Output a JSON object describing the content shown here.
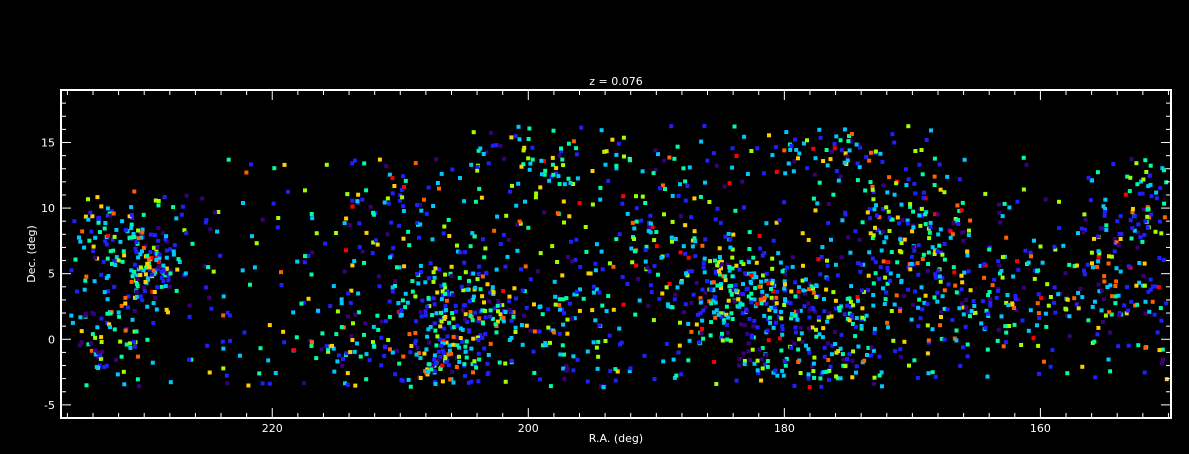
{
  "chart_data": {
    "type": "scatter",
    "title": "z = 0.076",
    "xlabel": "R.A. (deg)",
    "ylabel": "Dec. (deg)",
    "xlim": [
      236.5,
      149.8
    ],
    "ylim": [
      -6,
      19
    ],
    "xticks": [
      220,
      200,
      180,
      160
    ],
    "yticks": [
      -5,
      0,
      5,
      10,
      15
    ],
    "x_minor_step": 2,
    "y_minor_step": 1,
    "marker": "square",
    "grid": false,
    "legend": "none",
    "colormap": [
      "#3a007a",
      "#2020ff",
      "#00c8ff",
      "#00ffa0",
      "#a0ff00",
      "#ffd000",
      "#ff6000",
      "#ff0000"
    ],
    "clusters": [
      {
        "ra": 229.5,
        "dec": 5.8,
        "sd_ra": 1.2,
        "sd_dec": 1.4,
        "n": 110
      },
      {
        "ra": 233.0,
        "dec": 8.0,
        "sd_ra": 2.2,
        "sd_dec": 2.0,
        "n": 90
      },
      {
        "ra": 233.5,
        "dec": 1.0,
        "sd_ra": 1.8,
        "sd_dec": 2.3,
        "n": 60
      },
      {
        "ra": 205.0,
        "dec": 2.5,
        "sd_ra": 2.5,
        "sd_dec": 1.8,
        "n": 170
      },
      {
        "ra": 206.5,
        "dec": -1.5,
        "sd_ra": 1.8,
        "sd_dec": 1.4,
        "n": 80
      },
      {
        "ra": 183.5,
        "dec": 3.5,
        "sd_ra": 3.0,
        "sd_dec": 2.0,
        "n": 230
      },
      {
        "ra": 176.0,
        "dec": 2.0,
        "sd_ra": 3.5,
        "sd_dec": 2.2,
        "n": 150
      },
      {
        "ra": 170.0,
        "dec": 8.5,
        "sd_ra": 3.0,
        "sd_dec": 2.5,
        "n": 120
      },
      {
        "ra": 165.0,
        "dec": 3.0,
        "sd_ra": 4.0,
        "sd_dec": 2.5,
        "n": 130
      },
      {
        "ra": 155.0,
        "dec": 4.0,
        "sd_ra": 3.0,
        "sd_dec": 2.5,
        "n": 90
      },
      {
        "ra": 152.0,
        "dec": 10.5,
        "sd_ra": 1.8,
        "sd_dec": 2.0,
        "n": 60
      },
      {
        "ra": 214.0,
        "dec": 0.5,
        "sd_ra": 3.0,
        "sd_dec": 2.5,
        "n": 80
      },
      {
        "ra": 211.0,
        "dec": 9.5,
        "sd_ra": 2.0,
        "sd_dec": 3.0,
        "n": 60
      },
      {
        "ra": 197.0,
        "dec": 0.5,
        "sd_ra": 2.5,
        "sd_dec": 3.0,
        "n": 70
      },
      {
        "ra": 190.0,
        "dec": 9.0,
        "sd_ra": 3.5,
        "sd_dec": 3.5,
        "n": 80
      },
      {
        "ra": 177.0,
        "dec": 14.5,
        "sd_ra": 3.0,
        "sd_dec": 1.0,
        "n": 50
      },
      {
        "ra": 200.0,
        "dec": 13.5,
        "sd_ra": 4.0,
        "sd_dec": 1.5,
        "n": 60
      },
      {
        "ra": 178.0,
        "dec": -2.5,
        "sd_ra": 3.0,
        "sd_dec": 1.0,
        "n": 50
      }
    ],
    "background_points": 950,
    "coverage": [
      {
        "ra_min": 150.0,
        "ra_max": 236.0,
        "dec_min": -3.5,
        "dec_max": 11.5
      },
      {
        "ra_min": 150.0,
        "ra_max": 225.0,
        "dec_min": -3.5,
        "dec_max": 14.0
      },
      {
        "ra_min": 168.0,
        "ra_max": 205.0,
        "dec_min": -3.5,
        "dec_max": 16.5
      }
    ]
  }
}
